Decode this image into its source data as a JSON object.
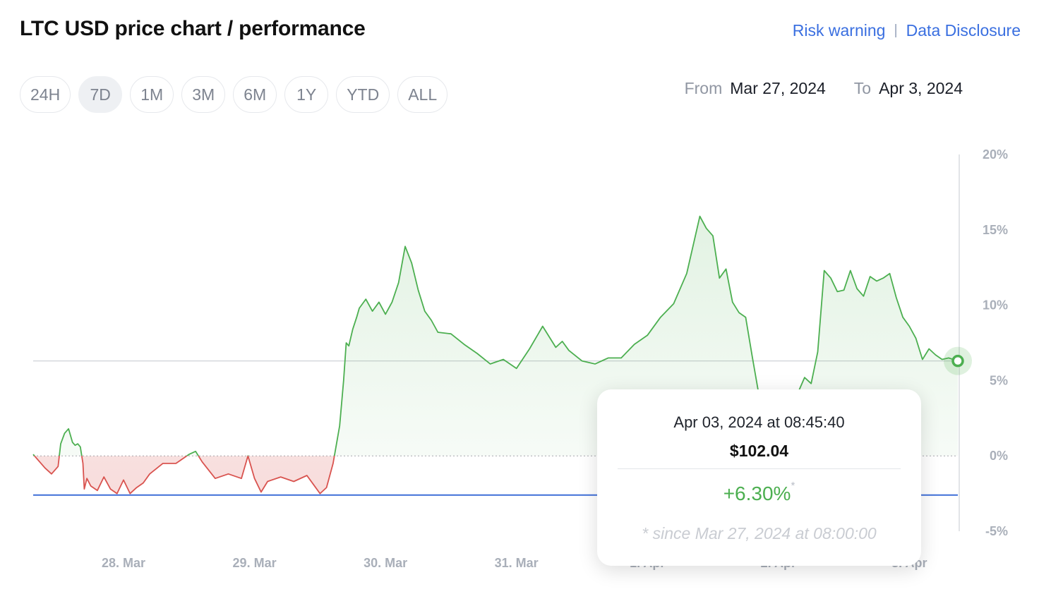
{
  "header": {
    "title": "LTC USD price chart / performance",
    "links": {
      "risk_warning": "Risk warning",
      "separator": "|",
      "data_disclosure": "Data Disclosure"
    }
  },
  "range_buttons": [
    {
      "label": "24H",
      "active": false
    },
    {
      "label": "7D",
      "active": true
    },
    {
      "label": "1M",
      "active": false
    },
    {
      "label": "3M",
      "active": false
    },
    {
      "label": "6M",
      "active": false
    },
    {
      "label": "1Y",
      "active": false
    },
    {
      "label": "YTD",
      "active": false
    },
    {
      "label": "ALL",
      "active": false
    }
  ],
  "date_range": {
    "from_label": "From",
    "from_value": "Mar 27, 2024",
    "to_label": "To",
    "to_value": "Apr 3, 2024"
  },
  "tooltip": {
    "datetime": "Apr 03, 2024 at 08:45:40",
    "price": "$102.04",
    "change": "+6.30%",
    "change_mark": "*",
    "since": "* since Mar 27, 2024 at 08:00:00"
  },
  "colors": {
    "positive": "#4caf50",
    "negative": "#d9534f",
    "accent": "#3a6fe0",
    "min_line": "#3f6fd8"
  },
  "chart_data": {
    "type": "area",
    "title": "",
    "xlabel": "",
    "ylabel": "",
    "x_ticks": [
      "28. Mar",
      "29. Mar",
      "30. Mar",
      "31. Mar",
      "1. Apr",
      "2. Apr",
      "3. Apr"
    ],
    "y_ticks": [
      "20%",
      "15%",
      "10%",
      "5%",
      "0%",
      "-5%"
    ],
    "y_tick_values": [
      20,
      15,
      10,
      5,
      0,
      -5
    ],
    "ylim": [
      -5,
      20
    ],
    "xlim": [
      -0.69,
      6.37
    ],
    "baseline": 0,
    "period_low": -2.6,
    "crosshair_value": 6.3,
    "series": [
      {
        "x": [
          -0.69,
          -0.6,
          -0.55,
          -0.5,
          -0.48,
          -0.45,
          -0.42,
          -0.39,
          -0.37,
          -0.35,
          -0.33,
          -0.31,
          -0.3,
          -0.28,
          -0.25,
          -0.2,
          -0.15,
          -0.1,
          -0.05,
          0,
          0.05,
          0.1,
          0.15,
          0.2,
          0.3,
          0.4,
          0.5,
          0.55,
          0.6,
          0.7,
          0.8,
          0.9,
          0.95,
          1.0,
          1.05,
          1.1,
          1.2,
          1.3,
          1.4,
          1.45,
          1.5,
          1.55,
          1.6,
          1.65,
          1.68,
          1.7,
          1.72,
          1.75,
          1.78,
          1.8,
          1.85,
          1.9,
          1.95,
          2.0,
          2.05,
          2.1,
          2.15,
          2.2,
          2.25,
          2.3,
          2.35,
          2.4,
          2.5,
          2.6,
          2.7,
          2.8,
          2.9,
          3.0,
          3.1,
          3.2,
          3.3,
          3.35,
          3.4,
          3.5,
          3.6,
          3.7,
          3.8,
          3.9,
          4.0,
          4.1,
          4.2,
          4.3,
          4.4,
          4.45,
          4.5,
          4.55,
          4.6,
          4.65,
          4.7,
          4.75,
          4.8,
          4.85,
          4.9,
          4.95,
          5.0,
          5.05,
          5.1,
          5.15,
          5.2,
          5.25,
          5.3,
          5.35,
          5.4,
          5.45,
          5.5,
          5.55,
          5.6,
          5.65,
          5.7,
          5.75,
          5.8,
          5.85,
          5.9,
          5.95,
          6.0,
          6.05,
          6.1,
          6.15,
          6.2,
          6.25,
          6.3,
          6.37
        ],
        "values": [
          0.1,
          -0.8,
          -1.2,
          -0.7,
          0.8,
          1.5,
          1.8,
          0.9,
          0.7,
          0.8,
          0.6,
          -0.5,
          -2.2,
          -1.5,
          -2.0,
          -2.3,
          -1.4,
          -2.2,
          -2.5,
          -1.6,
          -2.5,
          -2.1,
          -1.8,
          -1.2,
          -0.5,
          -0.5,
          0.1,
          0.3,
          -0.4,
          -1.5,
          -1.2,
          -1.5,
          0.0,
          -1.5,
          -2.4,
          -1.7,
          -1.4,
          -1.7,
          -1.3,
          -1.9,
          -2.5,
          -2.1,
          -0.5,
          2.0,
          5.0,
          7.5,
          7.3,
          8.4,
          9.2,
          9.8,
          10.4,
          9.6,
          10.2,
          9.4,
          10.2,
          11.5,
          13.9,
          12.8,
          11.0,
          9.6,
          9.0,
          8.2,
          8.1,
          7.4,
          6.8,
          6.1,
          6.4,
          5.8,
          7.1,
          8.6,
          7.2,
          7.6,
          7.0,
          6.3,
          6.1,
          6.5,
          6.5,
          7.4,
          8.0,
          9.2,
          10.1,
          12.1,
          15.9,
          15.1,
          14.6,
          11.8,
          12.4,
          10.2,
          9.5,
          9.2,
          6.6,
          4.1,
          2.5,
          1.8,
          1.0,
          1.7,
          2.9,
          4.2,
          5.2,
          4.8,
          6.9,
          12.3,
          11.8,
          10.9,
          11.0,
          12.3,
          11.1,
          10.6,
          11.9,
          11.6,
          11.8,
          12.1,
          10.5,
          9.2,
          8.6,
          7.8,
          6.4,
          7.1,
          6.7,
          6.4,
          6.5,
          6.3
        ]
      }
    ]
  }
}
